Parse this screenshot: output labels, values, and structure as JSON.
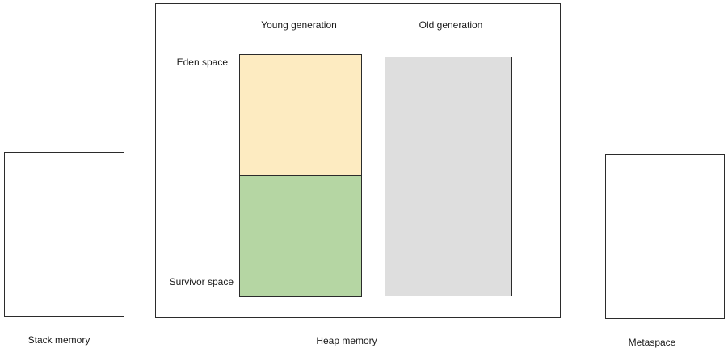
{
  "colors": {
    "eden_fill": "#fdebc1",
    "survivor_fill": "#b5d6a3",
    "old_fill": "#dedede",
    "outline": "#2b2b2b"
  },
  "regions": {
    "young_generation": "Young generation",
    "old_generation": "Old generation",
    "eden_space": "Eden space",
    "survivor_space": "Survivor space"
  },
  "captions": {
    "stack_memory": "Stack memory",
    "heap_memory": "Heap memory",
    "metaspace": "Metaspace"
  }
}
